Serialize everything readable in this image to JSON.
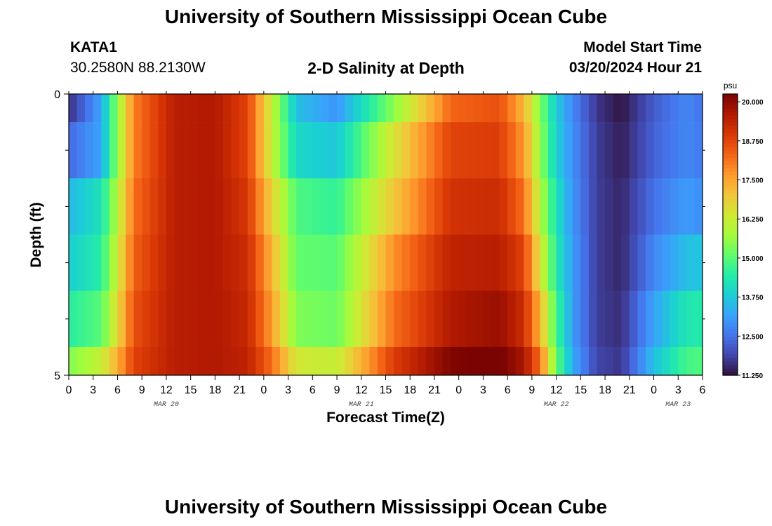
{
  "header": {
    "title": "University of Southern Mississippi Ocean Cube",
    "station_id": "KATA1",
    "coords": "30.2580N  88.2130W",
    "subtitle": "2-D Salinity at Depth",
    "model_start_label": "Model Start Time",
    "model_start_value": "03/20/2024 Hour 21"
  },
  "footer": {
    "title": "University of Southern Mississippi Ocean Cube"
  },
  "colors": {
    "palette": [
      "#30123b",
      "#4145ab",
      "#4675ed",
      "#39a2fc",
      "#1bcfd4",
      "#24eca6",
      "#61fc6c",
      "#a4fc3b",
      "#d1e834",
      "#f3c63a",
      "#fe9b2d",
      "#f36315",
      "#d93806",
      "#b11901",
      "#7a0402"
    ]
  },
  "chart_data": {
    "type": "heatmap",
    "title": "2-D Salinity at Depth",
    "xlabel": "Forecast Time(Z)",
    "ylabel": "Depth (ft)",
    "units": "psu",
    "x_tick_labels": [
      "0",
      "3",
      "6",
      "9",
      "12",
      "15",
      "18",
      "21",
      "0",
      "3",
      "6",
      "9",
      "12",
      "15",
      "18",
      "21",
      "0",
      "3",
      "6",
      "9",
      "12",
      "15",
      "18",
      "21",
      "0",
      "3",
      "6"
    ],
    "x_start_hour": 0,
    "x_end_hour": 78,
    "x_step_hours": 1,
    "date_labels": [
      {
        "label": "MAR 20",
        "hour": 12
      },
      {
        "label": "MAR 21",
        "hour": 36
      },
      {
        "label": "MAR 22",
        "hour": 60
      },
      {
        "label": "MAR 23",
        "hour": 75
      }
    ],
    "y_range": [
      0,
      5
    ],
    "y_tick_labels": [
      "0",
      "5"
    ],
    "y_minor_ticks": [
      1,
      2,
      3,
      4
    ],
    "depth_bands": [
      {
        "from": 0.0,
        "to": 0.5
      },
      {
        "from": 0.5,
        "to": 1.5
      },
      {
        "from": 1.5,
        "to": 2.5
      },
      {
        "from": 2.5,
        "to": 3.5
      },
      {
        "from": 3.5,
        "to": 4.5
      },
      {
        "from": 4.5,
        "to": 5.0
      }
    ],
    "knots_hours": [
      0,
      4,
      6,
      8,
      13,
      18,
      22,
      25,
      28,
      33,
      40,
      47,
      53,
      56,
      58,
      60,
      62,
      65,
      68,
      72,
      76,
      78
    ],
    "band_salinity_knots": [
      [
        11.6,
        13.2,
        15.6,
        18.0,
        19.5,
        19.6,
        18.8,
        16.2,
        13.6,
        13.0,
        15.5,
        18.3,
        18.6,
        17.3,
        15.4,
        13.8,
        12.8,
        11.7,
        11.3,
        12.2,
        12.8,
        12.5
      ],
      [
        12.4,
        13.2,
        15.6,
        18.0,
        19.5,
        19.6,
        18.8,
        16.2,
        14.0,
        13.7,
        16.5,
        18.8,
        18.9,
        17.7,
        15.6,
        13.9,
        12.9,
        11.8,
        11.4,
        12.3,
        12.8,
        12.6
      ],
      [
        13.5,
        14.2,
        16.0,
        18.2,
        19.5,
        19.6,
        19.0,
        16.8,
        14.9,
        14.6,
        17.0,
        19.1,
        19.2,
        18.2,
        16.0,
        14.2,
        13.0,
        11.8,
        11.5,
        12.5,
        13.1,
        12.9
      ],
      [
        13.8,
        14.5,
        16.3,
        18.4,
        19.5,
        19.6,
        19.2,
        17.3,
        15.1,
        15.0,
        17.8,
        19.4,
        19.5,
        18.8,
        16.5,
        14.4,
        13.1,
        11.8,
        11.5,
        12.8,
        13.6,
        13.7
      ],
      [
        14.5,
        15.0,
        16.7,
        18.6,
        19.5,
        19.6,
        19.3,
        17.6,
        15.4,
        15.2,
        18.2,
        19.6,
        19.9,
        19.2,
        17.3,
        14.8,
        13.1,
        11.8,
        11.6,
        13.2,
        14.3,
        14.4
      ],
      [
        15.4,
        16.2,
        17.4,
        18.8,
        19.5,
        19.6,
        19.4,
        18.2,
        16.4,
        16.2,
        18.9,
        20.2,
        20.3,
        19.7,
        18.2,
        15.2,
        13.3,
        11.9,
        11.7,
        13.6,
        14.8,
        14.9
      ]
    ],
    "colorbar": {
      "label": "psu",
      "min": 11.25,
      "max": 20.25,
      "ticks": [
        "20.000",
        "18.750",
        "17.500",
        "16.250",
        "15.000",
        "13.750",
        "12.500",
        "11.250"
      ]
    }
  }
}
